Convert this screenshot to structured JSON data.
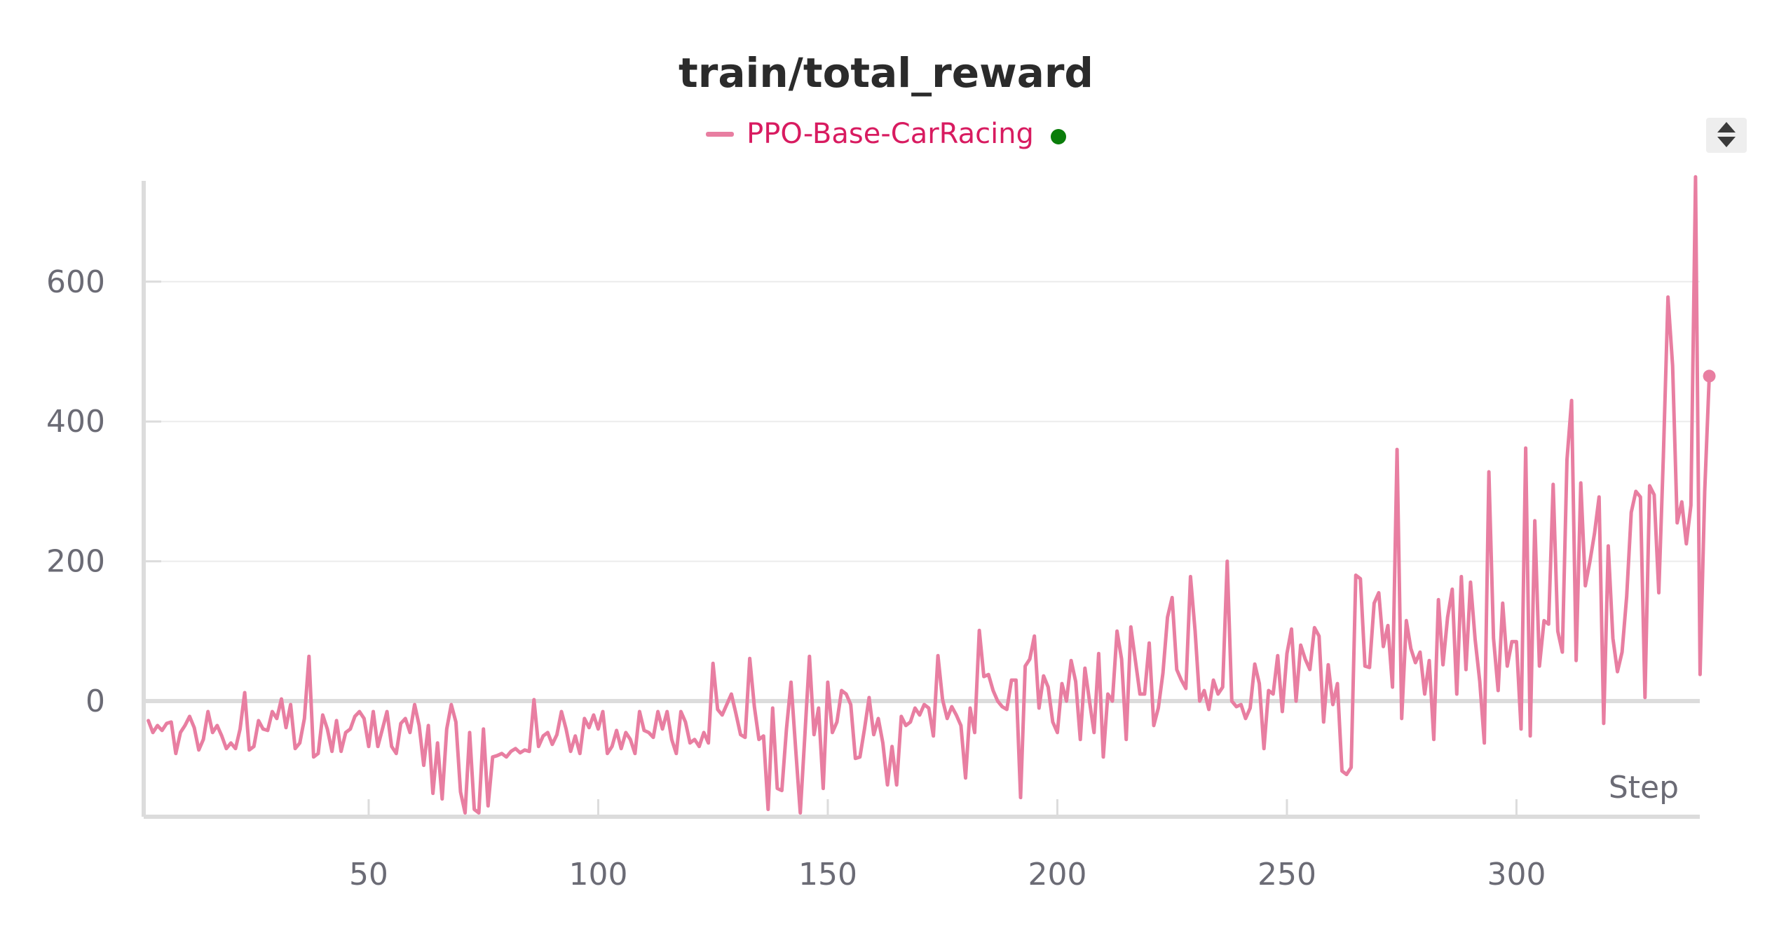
{
  "chart_data": {
    "type": "line",
    "title": "train/total_reward",
    "xlabel": "Step",
    "ylabel": "",
    "xlim": [
      1,
      340
    ],
    "ylim": [
      -165,
      750
    ],
    "x_ticks": [
      50,
      100,
      150,
      200,
      250,
      300
    ],
    "y_ticks": [
      0,
      200,
      400,
      600
    ],
    "grid": "horizontal",
    "legend_position": "top-center",
    "series": [
      {
        "name": "PPO-Base-CarRacing",
        "color": "#e87ea1",
        "x_start": 2,
        "x_step": 1,
        "values": [
          -28,
          -45,
          -35,
          -42,
          -32,
          -30,
          -75,
          -45,
          -35,
          -22,
          -38,
          -70,
          -55,
          -15,
          -45,
          -35,
          -50,
          -68,
          -60,
          -68,
          -40,
          12,
          -70,
          -65,
          -28,
          -40,
          -42,
          -15,
          -25,
          3,
          -38,
          -5,
          -68,
          -60,
          -25,
          64,
          -80,
          -75,
          -20,
          -40,
          -72,
          -28,
          -72,
          -45,
          -40,
          -22,
          -15,
          -25,
          -65,
          -15,
          -65,
          -40,
          -15,
          -65,
          -75,
          -32,
          -25,
          -45,
          -5,
          -35,
          -92,
          -35,
          -132,
          -60,
          -140,
          -40,
          -5,
          -30,
          -130,
          -160,
          -45,
          -155,
          -160,
          -40,
          -150,
          -80,
          -78,
          -75,
          -80,
          -72,
          -68,
          -74,
          -70,
          -72,
          2,
          -65,
          -50,
          -45,
          -62,
          -48,
          -15,
          -40,
          -72,
          -50,
          -75,
          -25,
          -38,
          -20,
          -40,
          -15,
          -75,
          -65,
          -42,
          -68,
          -45,
          -55,
          -75,
          -15,
          -42,
          -45,
          -52,
          -15,
          -40,
          -15,
          -55,
          -75,
          -15,
          -30,
          -60,
          -55,
          -65,
          -45,
          -60,
          54,
          -12,
          -20,
          -5,
          10,
          -18,
          -48,
          -52,
          61,
          -8,
          -55,
          -50,
          -155,
          -10,
          -125,
          -128,
          -40,
          27,
          -68,
          -160,
          -50,
          64,
          -48,
          -10,
          -125,
          27,
          -45,
          -30,
          15,
          10,
          -5,
          -82,
          -80,
          -40,
          5,
          -48,
          -25,
          -60,
          -120,
          -65,
          -120,
          -22,
          -35,
          -30,
          -10,
          -20,
          -5,
          -10,
          -50,
          65,
          2,
          -25,
          -8,
          -20,
          -35,
          -110,
          -10,
          -45,
          101,
          35,
          38,
          15,
          0,
          -8,
          -12,
          30,
          30,
          -138,
          50,
          60,
          93,
          -10,
          36,
          20,
          -30,
          -45,
          25,
          0,
          58,
          28,
          -55,
          47,
          0,
          -45,
          68,
          -80,
          10,
          0,
          100,
          60,
          -55,
          106,
          58,
          10,
          10,
          83,
          -35,
          -10,
          40,
          120,
          148,
          45,
          30,
          18,
          178,
          100,
          0,
          15,
          -12,
          30,
          10,
          20,
          200,
          0,
          -8,
          -5,
          -25,
          -10,
          53,
          25,
          -68,
          15,
          10,
          65,
          -15,
          68,
          103,
          0,
          80,
          60,
          45,
          105,
          93,
          -30,
          52,
          -5,
          25,
          -100,
          -105,
          -95,
          180,
          175,
          50,
          48,
          140,
          155,
          78,
          108,
          20,
          360,
          -25,
          115,
          75,
          55,
          70,
          10,
          58,
          -55,
          145,
          52,
          120,
          160,
          10,
          178,
          45,
          170,
          88,
          28,
          -60,
          328,
          90,
          15,
          140,
          50,
          85,
          85,
          -40,
          362,
          -50,
          258,
          50,
          115,
          110,
          310,
          100,
          70,
          345,
          430,
          58,
          312,
          165,
          200,
          240,
          292,
          -32,
          222,
          90,
          42,
          70,
          150,
          270,
          300,
          292,
          5,
          308,
          295,
          155,
          350,
          578,
          480,
          255,
          285,
          225,
          280,
          750,
          38,
          300,
          465
        ]
      }
    ]
  }
}
